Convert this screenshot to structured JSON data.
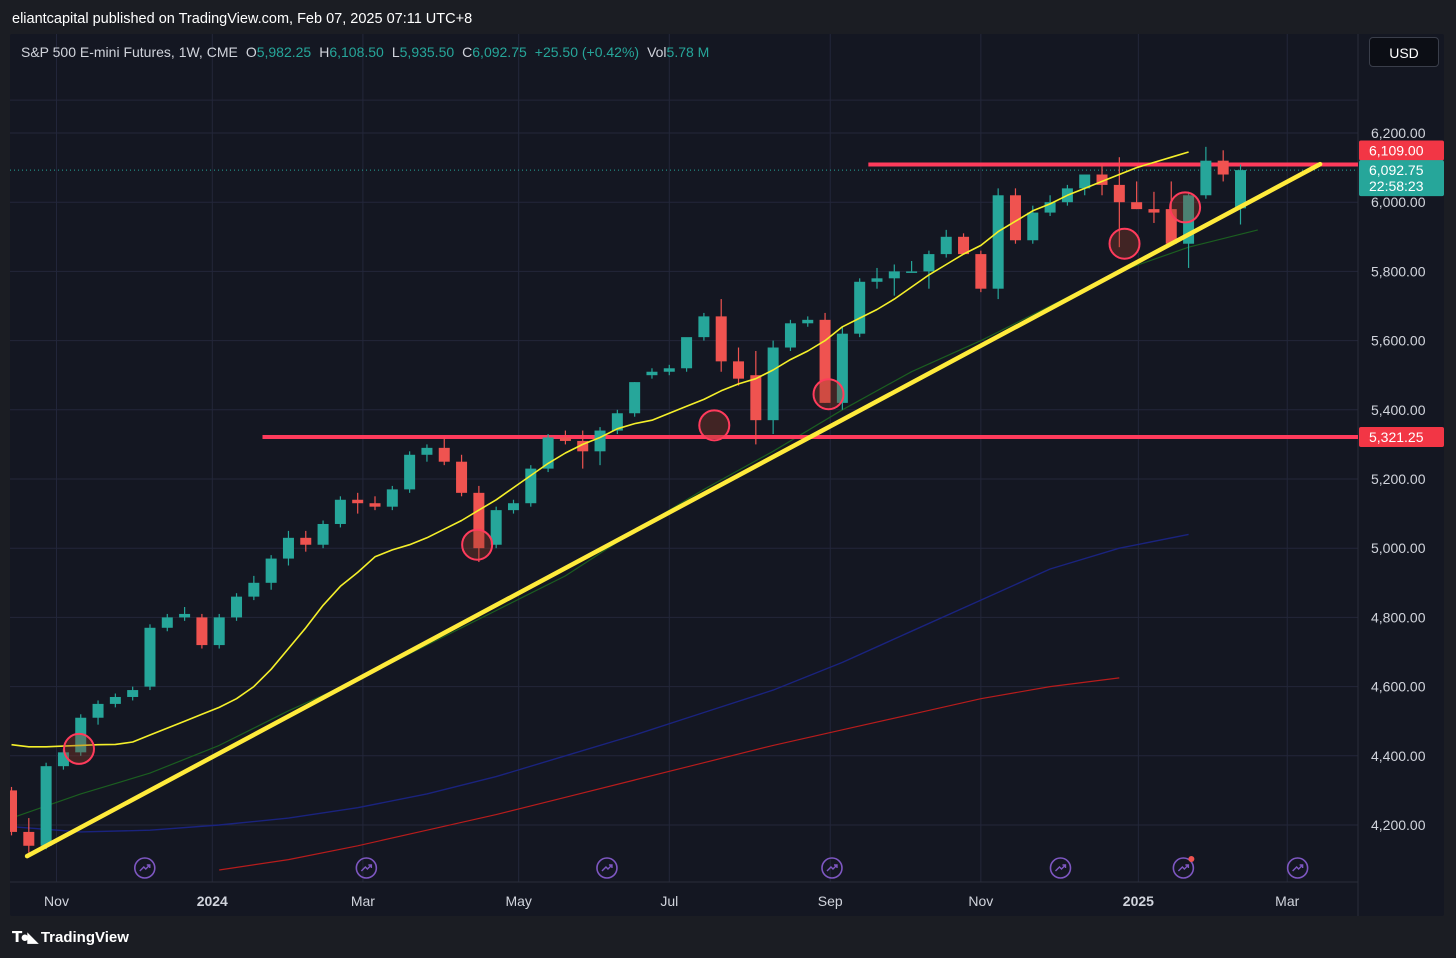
{
  "header": {
    "publisher_line": "eliantcapital published on TradingView.com, Feb 07, 2025 07:11 UTC+8"
  },
  "legend": {
    "symbol": "S&P 500 E-mini Futures, 1W, CME",
    "open_label": "O",
    "open": "5,982.25",
    "high_label": "H",
    "high": "6,108.50",
    "low_label": "L",
    "low": "5,935.50",
    "close_label": "C",
    "close": "6,092.75",
    "change": "+25.50 (+0.42%)",
    "vol_label": "Vol",
    "vol": "5.78 M"
  },
  "currency_button": "USD",
  "footer": {
    "brand": "TradingView"
  },
  "chart_data": {
    "type": "candlestick",
    "title": "S&P 500 E-mini Futures, 1W, CME",
    "timeframe": "1W",
    "y_axis": {
      "ticks": [
        "6,200.00",
        "6,000.00",
        "5,800.00",
        "5,600.00",
        "5,400.00",
        "5,200.00",
        "5,000.00",
        "4,800.00",
        "4,600.00",
        "4,400.00",
        "4,200.00"
      ],
      "tick_values": [
        6200,
        6000,
        5800,
        5600,
        5400,
        5200,
        5000,
        4800,
        4600,
        4400,
        4200
      ],
      "range": [
        4070,
        6320
      ]
    },
    "x_axis": {
      "labels": [
        {
          "text": "Nov",
          "bold": false,
          "week": 2.6
        },
        {
          "text": "2024",
          "bold": true,
          "week": 11.6
        },
        {
          "text": "Mar",
          "bold": false,
          "week": 20.3
        },
        {
          "text": "May",
          "bold": false,
          "week": 29.3
        },
        {
          "text": "Jul",
          "bold": false,
          "week": 38.0
        },
        {
          "text": "Sep",
          "bold": false,
          "week": 47.3
        },
        {
          "text": "Nov",
          "bold": false,
          "week": 56.0
        },
        {
          "text": "2025",
          "bold": true,
          "week": 65.1
        },
        {
          "text": "Mar",
          "bold": false,
          "week": 73.7
        }
      ],
      "week_range": [
        -0.15,
        79.1
      ]
    },
    "candles": [
      [
        4300,
        4310,
        4170,
        4180
      ],
      [
        4180,
        4220,
        4120,
        4140
      ],
      [
        4140,
        4380,
        4130,
        4370
      ],
      [
        4370,
        4420,
        4360,
        4410
      ],
      [
        4410,
        4520,
        4400,
        4510
      ],
      [
        4510,
        4560,
        4490,
        4550
      ],
      [
        4550,
        4580,
        4540,
        4570
      ],
      [
        4570,
        4600,
        4560,
        4590
      ],
      [
        4600,
        4780,
        4590,
        4770
      ],
      [
        4770,
        4810,
        4760,
        4800
      ],
      [
        4800,
        4830,
        4790,
        4810
      ],
      [
        4800,
        4810,
        4710,
        4720
      ],
      [
        4720,
        4810,
        4710,
        4800
      ],
      [
        4800,
        4870,
        4790,
        4860
      ],
      [
        4860,
        4920,
        4850,
        4900
      ],
      [
        4900,
        4980,
        4880,
        4970
      ],
      [
        4970,
        5050,
        4950,
        5030
      ],
      [
        5030,
        5050,
        4990,
        5010
      ],
      [
        5010,
        5080,
        5000,
        5070
      ],
      [
        5070,
        5150,
        5060,
        5140
      ],
      [
        5140,
        5160,
        5100,
        5130
      ],
      [
        5130,
        5150,
        5110,
        5120
      ],
      [
        5120,
        5180,
        5110,
        5170
      ],
      [
        5170,
        5280,
        5160,
        5270
      ],
      [
        5270,
        5300,
        5250,
        5290
      ],
      [
        5290,
        5320,
        5240,
        5250
      ],
      [
        5250,
        5270,
        5150,
        5160
      ],
      [
        5160,
        5180,
        4960,
        5000
      ],
      [
        5010,
        5120,
        5000,
        5110
      ],
      [
        5110,
        5140,
        5100,
        5130
      ],
      [
        5130,
        5240,
        5120,
        5230
      ],
      [
        5230,
        5330,
        5220,
        5320
      ],
      [
        5320,
        5340,
        5300,
        5310
      ],
      [
        5310,
        5340,
        5230,
        5280
      ],
      [
        5280,
        5350,
        5240,
        5340
      ],
      [
        5340,
        5400,
        5330,
        5390
      ],
      [
        5390,
        5480,
        5380,
        5480
      ],
      [
        5500,
        5520,
        5490,
        5510
      ],
      [
        5510,
        5530,
        5500,
        5520
      ],
      [
        5520,
        5600,
        5510,
        5610
      ],
      [
        5610,
        5680,
        5600,
        5670
      ],
      [
        5670,
        5720,
        5510,
        5540
      ],
      [
        5540,
        5580,
        5470,
        5490
      ],
      [
        5500,
        5570,
        5300,
        5370
      ],
      [
        5370,
        5600,
        5330,
        5580
      ],
      [
        5580,
        5660,
        5570,
        5650
      ],
      [
        5650,
        5670,
        5640,
        5660
      ],
      [
        5660,
        5680,
        5420,
        5420
      ],
      [
        5420,
        5640,
        5400,
        5620
      ],
      [
        5620,
        5780,
        5610,
        5770
      ],
      [
        5770,
        5810,
        5750,
        5780
      ],
      [
        5780,
        5820,
        5730,
        5800
      ],
      [
        5800,
        5830,
        5800,
        5800
      ],
      [
        5800,
        5860,
        5750,
        5850
      ],
      [
        5850,
        5920,
        5840,
        5900
      ],
      [
        5900,
        5910,
        5850,
        5850
      ],
      [
        5850,
        5860,
        5740,
        5750
      ],
      [
        5750,
        6040,
        5720,
        6020
      ],
      [
        6020,
        6040,
        5880,
        5890
      ],
      [
        5890,
        5990,
        5880,
        5970
      ],
      [
        5970,
        6020,
        5960,
        6000
      ],
      [
        6000,
        6050,
        5990,
        6040
      ],
      [
        6040,
        6080,
        6020,
        6080
      ],
      [
        6080,
        6110,
        6020,
        6050
      ],
      [
        6050,
        6130,
        5870,
        6000
      ],
      [
        6000,
        6060,
        5980,
        5980
      ],
      [
        5980,
        6030,
        5940,
        5970
      ],
      [
        5980,
        6060,
        5890,
        5880
      ],
      [
        5880,
        6030,
        5810,
        6020
      ],
      [
        6020,
        6160,
        6010,
        6120
      ],
      [
        6120,
        6150,
        6060,
        6080
      ],
      [
        5982.25,
        6108.5,
        5935.5,
        6092.75
      ]
    ],
    "ma_yellow": [
      4450,
      4440,
      4440,
      4445,
      4445,
      4447,
      4450,
      4460,
      4490,
      4520,
      4545,
      4575,
      4610,
      4650,
      4700,
      4760,
      4830,
      4910,
      4970,
      5000,
      5010,
      5030,
      5060,
      5090,
      5125,
      5160,
      5195,
      5225,
      5250,
      5270,
      5290,
      5310,
      5330,
      5350,
      5380,
      5410,
      5440,
      5470,
      5505,
      5540,
      5590,
      5650,
      5670,
      5700,
      5740,
      5760,
      5780,
      5800,
      5830,
      5870,
      5930,
      5990,
      6040,
      6090,
      6125
    ],
    "ma_yellow_weeks": [
      0,
      1,
      2,
      3,
      4,
      5,
      6,
      7,
      8,
      9,
      10,
      11,
      12,
      13,
      14,
      15,
      16,
      17,
      18,
      19,
      20,
      21,
      22,
      23,
      24,
      25,
      26,
      27,
      28,
      29,
      30,
      31,
      32,
      33,
      34,
      35,
      36,
      37,
      38,
      39,
      40,
      41,
      42,
      43,
      44,
      45,
      46,
      47,
      48,
      49,
      50,
      51,
      52,
      53,
      54
    ],
    "ma_yellow_v2": [
      [
        0,
        4432
      ],
      [
        1,
        4426
      ],
      [
        2,
        4426
      ],
      [
        3,
        4428
      ],
      [
        4,
        4430
      ],
      [
        5,
        4432
      ],
      [
        6,
        4433
      ],
      [
        7,
        4440
      ],
      [
        8,
        4460
      ],
      [
        9,
        4480
      ],
      [
        10,
        4500
      ],
      [
        11,
        4520
      ],
      [
        12,
        4540
      ],
      [
        13,
        4565
      ],
      [
        14,
        4600
      ],
      [
        15,
        4650
      ],
      [
        16,
        4710
      ],
      [
        17,
        4770
      ],
      [
        18,
        4835
      ],
      [
        19,
        4890
      ],
      [
        20,
        4930
      ],
      [
        21,
        4975
      ],
      [
        22,
        4995
      ],
      [
        23,
        5010
      ],
      [
        24,
        5030
      ],
      [
        25,
        5055
      ],
      [
        26,
        5080
      ],
      [
        27,
        5110
      ],
      [
        28,
        5140
      ],
      [
        29,
        5175
      ],
      [
        30,
        5210
      ],
      [
        31,
        5245
      ],
      [
        32,
        5275
      ],
      [
        33,
        5300
      ],
      [
        34,
        5320
      ],
      [
        35,
        5345
      ],
      [
        36,
        5360
      ],
      [
        37,
        5370
      ],
      [
        38,
        5390
      ],
      [
        39,
        5410
      ],
      [
        40,
        5430
      ],
      [
        41,
        5455
      ],
      [
        42,
        5475
      ],
      [
        43,
        5490
      ],
      [
        44,
        5515
      ],
      [
        45,
        5545
      ],
      [
        46,
        5570
      ],
      [
        47,
        5600
      ],
      [
        48,
        5640
      ],
      [
        49,
        5665
      ],
      [
        50,
        5690
      ],
      [
        51,
        5720
      ],
      [
        52,
        5755
      ],
      [
        53,
        5790
      ],
      [
        54,
        5820
      ],
      [
        55,
        5850
      ],
      [
        56,
        5875
      ],
      [
        57,
        5915
      ],
      [
        58,
        5945
      ],
      [
        59,
        5975
      ],
      [
        60,
        5995
      ],
      [
        61,
        6020
      ],
      [
        62,
        6040
      ],
      [
        63,
        6060
      ],
      [
        64,
        6080
      ],
      [
        65,
        6100
      ],
      [
        66,
        6115
      ],
      [
        67,
        6130
      ],
      [
        68,
        6145
      ]
    ],
    "ma_green": [
      [
        0,
        4220
      ],
      [
        4,
        4290
      ],
      [
        8,
        4350
      ],
      [
        12,
        4430
      ],
      [
        16,
        4530
      ],
      [
        20,
        4620
      ],
      [
        24,
        4720
      ],
      [
        28,
        4820
      ],
      [
        32,
        4920
      ],
      [
        36,
        5050
      ],
      [
        40,
        5170
      ],
      [
        44,
        5280
      ],
      [
        48,
        5400
      ],
      [
        52,
        5510
      ],
      [
        56,
        5600
      ],
      [
        60,
        5700
      ],
      [
        64,
        5800
      ],
      [
        68,
        5870
      ],
      [
        72,
        5920
      ]
    ],
    "ma_blue": [
      [
        0,
        4195
      ],
      [
        4,
        4180
      ],
      [
        8,
        4185
      ],
      [
        12,
        4200
      ],
      [
        16,
        4220
      ],
      [
        20,
        4250
      ],
      [
        24,
        4290
      ],
      [
        28,
        4340
      ],
      [
        32,
        4400
      ],
      [
        36,
        4460
      ],
      [
        40,
        4525
      ],
      [
        44,
        4590
      ],
      [
        48,
        4670
      ],
      [
        52,
        4760
      ],
      [
        56,
        4850
      ],
      [
        60,
        4940
      ],
      [
        64,
        5000
      ],
      [
        68,
        5040
      ]
    ],
    "ma_red": [
      [
        12,
        4070
      ],
      [
        16,
        4100
      ],
      [
        20,
        4140
      ],
      [
        24,
        4185
      ],
      [
        28,
        4230
      ],
      [
        32,
        4280
      ],
      [
        36,
        4330
      ],
      [
        40,
        4380
      ],
      [
        44,
        4430
      ],
      [
        48,
        4475
      ],
      [
        52,
        4520
      ],
      [
        56,
        4565
      ],
      [
        60,
        4600
      ],
      [
        64,
        4625
      ]
    ],
    "trendline": {
      "from": [
        0.9,
        4110
      ],
      "to": [
        75.6,
        6110
      ]
    },
    "resistance_upper": {
      "price": 6109.0,
      "label": "6,109.00",
      "from_week": 49.5
    },
    "support_lower": {
      "price": 5321.25,
      "label": "5,321.25",
      "from_week": 14.5
    },
    "last_price": {
      "price": 6092.75,
      "label": "6,092.75",
      "countdown": "22:58:23"
    },
    "touch_circles": [
      [
        3.9,
        4420
      ],
      [
        26.9,
        5010
      ],
      [
        40.6,
        5355
      ],
      [
        47.2,
        5445
      ],
      [
        64.3,
        5880
      ],
      [
        67.8,
        5985
      ]
    ],
    "event_markers_weeks": [
      7.7,
      20.5,
      34.4,
      47.4,
      60.6,
      67.7,
      74.3
    ]
  },
  "colors": {
    "bull": "#26a69a",
    "bear": "#ef5350",
    "ma_yellow": "#f5f02a",
    "trend": "#ffeb3b",
    "ma_green": "#1b5e20",
    "ma_blue": "#1a237e",
    "ma_red": "#b71c1c",
    "level": "#ff3b5c",
    "marker": "#7e57c2"
  }
}
